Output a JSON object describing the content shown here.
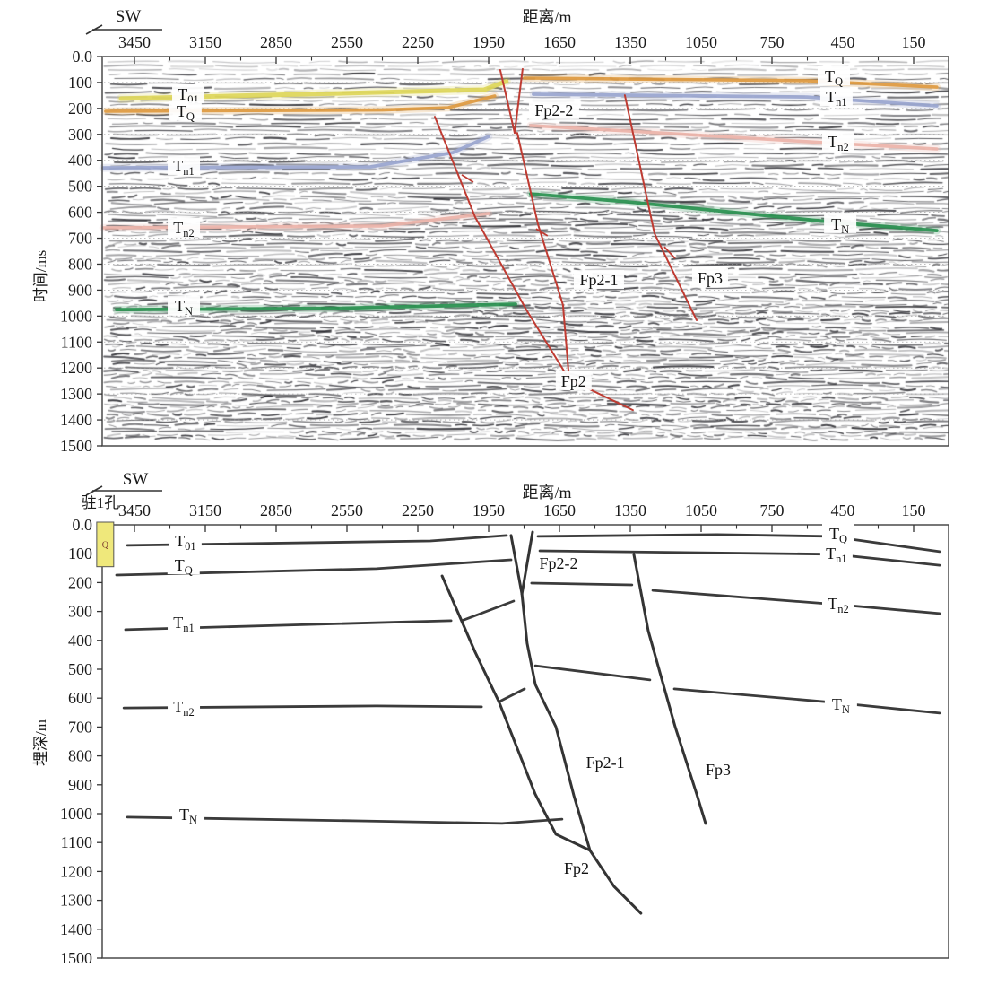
{
  "figure": {
    "kind": "seismic reflection profile with geological interpretation",
    "direction_label": "SW",
    "fault_color": "#bf3b32",
    "interpretation_line_color": "#3b3b3b"
  },
  "chart_data": [
    {
      "id": "seismic-time-section",
      "type": "line",
      "background": "seismic-wiggle-texture",
      "direction_label": "SW",
      "xlabel": "距离/m",
      "ylabel": "时间/ms",
      "x_ticks": [
        3450,
        3150,
        2850,
        2550,
        2250,
        1950,
        1650,
        1350,
        1050,
        750,
        450,
        150
      ],
      "x_minor_interval": 150,
      "xlim": [
        3600,
        0
      ],
      "y_tick_labels": [
        "0.0",
        "100",
        "200",
        "300",
        "400",
        "500",
        "600",
        "700",
        "800",
        "900",
        "1000",
        "1100",
        "1200",
        "1300",
        "1400",
        "1500"
      ],
      "ylim": [
        0,
        1500
      ],
      "gridlines": {
        "y_interval": 100,
        "style": "dotted"
      },
      "horizons": [
        {
          "name": "T01",
          "side": "left",
          "color": "#ddd75a",
          "width": 5,
          "points": [
            [
              3507,
              162
            ],
            [
              2500,
              140
            ],
            [
              1969,
              128
            ],
            [
              1875,
              95
            ]
          ]
        },
        {
          "name": "TQ",
          "side": "left",
          "color": "#dd9a40",
          "width": 3.6,
          "points": [
            [
              3572,
              211
            ],
            [
              2400,
              206
            ],
            [
              2121,
              197
            ],
            [
              1924,
              152
            ]
          ]
        },
        {
          "name": "TQ",
          "side": "right",
          "color": "#dd9a40",
          "width": 3.6,
          "points": [
            [
              1798,
              83
            ],
            [
              602,
              93
            ],
            [
              52,
              118
            ]
          ]
        },
        {
          "name": "Tn1",
          "side": "left",
          "color": "#9aa6cf",
          "width": 3.8,
          "points": [
            [
              3583,
              429
            ],
            [
              2450,
              425
            ],
            [
              2102,
              370
            ],
            [
              1950,
              308
            ]
          ]
        },
        {
          "name": "Tn1",
          "side": "right",
          "color": "#9aa6cf",
          "width": 3.8,
          "points": [
            [
              1760,
              145
            ],
            [
              602,
              156
            ],
            [
              52,
              190
            ]
          ]
        },
        {
          "name": "Tn2",
          "side": "left",
          "color": "#ecb3a9",
          "width": 3.6,
          "points": [
            [
              3583,
              660
            ],
            [
              2400,
              653
            ],
            [
              1950,
              605
            ]
          ]
        },
        {
          "name": "Tn2",
          "side": "right",
          "color": "#ecb3a9",
          "width": 3.6,
          "points": [
            [
              1772,
              266
            ],
            [
              1362,
              287
            ],
            [
              470,
              335
            ],
            [
              52,
              356
            ]
          ]
        },
        {
          "name": "TN",
          "side": "left",
          "color": "#2a9150",
          "width": 3.8,
          "points": [
            [
              3526,
              975
            ],
            [
              2600,
              970
            ],
            [
              1836,
              954
            ]
          ]
        },
        {
          "name": "TN",
          "side": "right",
          "color": "#2a9150",
          "width": 3.8,
          "points": [
            [
              1772,
              529
            ],
            [
              1362,
              560
            ],
            [
              470,
              640
            ],
            [
              52,
              671
            ]
          ]
        }
      ],
      "faults": [
        {
          "name": "Fp2",
          "points": [
            [
              2178,
              232
            ],
            [
              2007,
              619
            ],
            [
              1791,
              975
            ],
            [
              1609,
              1244
            ],
            [
              1339,
              1362
            ]
          ]
        },
        {
          "name": "Fp2-1",
          "points": [
            [
              1829,
              294
            ],
            [
              1741,
              646
            ],
            [
              1635,
              957
            ],
            [
              1609,
              1244
            ]
          ]
        },
        {
          "name": "Fp2-2-west",
          "points": [
            [
              1901,
              52
            ],
            [
              1840,
              294
            ]
          ]
        },
        {
          "name": "Fp2-2-east",
          "points": [
            [
              1806,
              48
            ],
            [
              1840,
              294
            ]
          ]
        },
        {
          "name": "Fp3",
          "points": [
            [
              1373,
              149
            ],
            [
              1248,
              681
            ],
            [
              1069,
              1016
            ]
          ]
        }
      ],
      "fault_ticks": [
        [
          [
            2064,
            456
          ],
          [
            2015,
            484
          ]
        ],
        [
          [
            1749,
            664
          ],
          [
            1700,
            691
          ]
        ],
        [
          [
            1206,
            733
          ],
          [
            1160,
            778
          ]
        ]
      ],
      "horizon_labels": [
        {
          "main": "T",
          "sub": "01",
          "d": 3222,
          "v": 145
        },
        {
          "main": "T",
          "sub": "Q",
          "d": 3234,
          "v": 211
        },
        {
          "main": "T",
          "sub": "n1",
          "d": 3241,
          "v": 422
        },
        {
          "main": "T",
          "sub": "n2",
          "d": 3241,
          "v": 660
        },
        {
          "main": "T",
          "sub": "N",
          "d": 3241,
          "v": 961
        },
        {
          "main": "T",
          "sub": "Q",
          "d": 488,
          "v": 76
        },
        {
          "main": "T",
          "sub": "n1",
          "d": 477,
          "v": 156
        },
        {
          "main": "T",
          "sub": "n2",
          "d": 469,
          "v": 328
        },
        {
          "main": "T",
          "sub": "N",
          "d": 461,
          "v": 646
        }
      ],
      "fault_labels": [
        {
          "text": "Fp2-2",
          "d": 1673,
          "v": 207
        },
        {
          "text": "Fp2-1",
          "d": 1483,
          "v": 861
        },
        {
          "text": "Fp3",
          "d": 1012,
          "v": 854
        },
        {
          "text": "Fp2",
          "d": 1590,
          "v": 1251
        }
      ]
    },
    {
      "id": "depth-interpretation-section",
      "type": "line",
      "background": "white",
      "direction_label": "SW",
      "xlabel": "距离/m",
      "ylabel": "埋深/m",
      "x_ticks": [
        3450,
        3150,
        2850,
        2550,
        2250,
        1950,
        1650,
        1350,
        1050,
        750,
        450,
        150
      ],
      "x_minor_interval": 150,
      "xlim": [
        3600,
        0
      ],
      "y_tick_labels": [
        "0.0",
        "100",
        "200",
        "300",
        "400",
        "500",
        "600",
        "700",
        "800",
        "900",
        "1000",
        "1100",
        "1200",
        "1300",
        "1400",
        "1500"
      ],
      "ylim": [
        0,
        1500
      ],
      "borehole": {
        "label": "驻1孔",
        "lithology_code": "Q",
        "fill": "#efe87b",
        "top_m": 0,
        "bottom_m": 145,
        "d_from": 3610,
        "d_to": 3538
      },
      "horizons": [
        {
          "name": "T01",
          "side": "left",
          "points": [
            [
              3480,
              71
            ],
            [
              2197,
              56
            ],
            [
              1874,
              37
            ]
          ]
        },
        {
          "name": "TQ",
          "side": "left",
          "points": [
            [
              3526,
              174
            ],
            [
              2425,
              152
            ],
            [
              1855,
              121
            ]
          ]
        },
        {
          "name": "Tn1",
          "side": "left",
          "points": [
            [
              3488,
              363
            ],
            [
              2843,
              348
            ],
            [
              2109,
              332
            ]
          ]
        },
        {
          "name": "Tn1",
          "side": "mid",
          "points": [
            [
              2064,
              332
            ],
            [
              1844,
              264
            ]
          ]
        },
        {
          "name": "Tn2",
          "side": "left",
          "points": [
            [
              3495,
              634
            ],
            [
              2425,
              627
            ],
            [
              1980,
              630
            ]
          ]
        },
        {
          "name": "Tn2",
          "side": "mid",
          "points": [
            [
              1905,
              612
            ],
            [
              1798,
              568
            ]
          ]
        },
        {
          "name": "TN",
          "side": "left",
          "points": [
            [
              3480,
              1012
            ],
            [
              2501,
              1025
            ],
            [
              1893,
              1034
            ],
            [
              1639,
              1019
            ]
          ]
        },
        {
          "name": "TQ",
          "side": "right",
          "points": [
            [
              1741,
              40
            ],
            [
              982,
              34
            ],
            [
              500,
              40
            ],
            [
              40,
              93
            ]
          ]
        },
        {
          "name": "Tn1",
          "side": "right",
          "points": [
            [
              1733,
              90
            ],
            [
              489,
              102
            ],
            [
              40,
              140
            ]
          ]
        },
        {
          "name": "Tn2",
          "side": "right-a",
          "points": [
            [
              1768,
              202
            ],
            [
              1343,
              208
            ]
          ]
        },
        {
          "name": "Tn2",
          "side": "right-b",
          "points": [
            [
              1255,
              227
            ],
            [
              470,
              276
            ],
            [
              40,
              307
            ]
          ]
        },
        {
          "name": "TN",
          "side": "mid",
          "points": [
            [
              1752,
              488
            ],
            [
              1267,
              537
            ]
          ]
        },
        {
          "name": "TN",
          "side": "right",
          "points": [
            [
              1164,
              568
            ],
            [
              489,
              615
            ],
            [
              40,
              652
            ]
          ]
        }
      ],
      "faults": [
        {
          "name": "Fp2-2-west",
          "points": [
            [
              1855,
              37
            ],
            [
              1809,
              239
            ]
          ]
        },
        {
          "name": "Fp2-2-east",
          "points": [
            [
              1764,
              25
            ],
            [
              1809,
              239
            ]
          ]
        },
        {
          "name": "Fp2-1",
          "points": [
            [
              1809,
              239
            ],
            [
              1787,
              410
            ],
            [
              1752,
              553
            ],
            [
              1665,
              699
            ],
            [
              1589,
              938
            ],
            [
              1521,
              1127
            ]
          ]
        },
        {
          "name": "Fp2",
          "points": [
            [
              2147,
              177
            ],
            [
              2007,
              441
            ],
            [
              1905,
              615
            ],
            [
              1753,
              932
            ],
            [
              1665,
              1071
            ],
            [
              1521,
              1127
            ]
          ]
        },
        {
          "name": "Fp2-tail",
          "points": [
            [
              1521,
              1127
            ],
            [
              1419,
              1252
            ],
            [
              1305,
              1345
            ]
          ]
        },
        {
          "name": "Fp3",
          "points": [
            [
              1335,
              102
            ],
            [
              1274,
              367
            ],
            [
              1160,
              699
            ],
            [
              1069,
              932
            ],
            [
              1031,
              1034
            ]
          ]
        }
      ],
      "horizon_labels": [
        {
          "main": "T",
          "sub": "01",
          "d": 3234,
          "v": 56
        },
        {
          "main": "T",
          "sub": "Q",
          "d": 3242,
          "v": 140
        },
        {
          "main": "T",
          "sub": "n1",
          "d": 3241,
          "v": 339
        },
        {
          "main": "T",
          "sub": "n2",
          "d": 3241,
          "v": 631
        },
        {
          "main": "T",
          "sub": "N",
          "d": 3222,
          "v": 1003
        },
        {
          "main": "T",
          "sub": "Q",
          "d": 469,
          "v": 31
        },
        {
          "main": "T",
          "sub": "n1",
          "d": 477,
          "v": 99
        },
        {
          "main": "T",
          "sub": "n2",
          "d": 469,
          "v": 273
        },
        {
          "main": "T",
          "sub": "N",
          "d": 458,
          "v": 621
        }
      ],
      "fault_labels": [
        {
          "text": "Fp2-2",
          "d": 1654,
          "v": 134
        },
        {
          "text": "Fp2-1",
          "d": 1456,
          "v": 823
        },
        {
          "text": "Fp3",
          "d": 978,
          "v": 848
        },
        {
          "text": "Fp2",
          "d": 1578,
          "v": 1189
        }
      ]
    }
  ]
}
